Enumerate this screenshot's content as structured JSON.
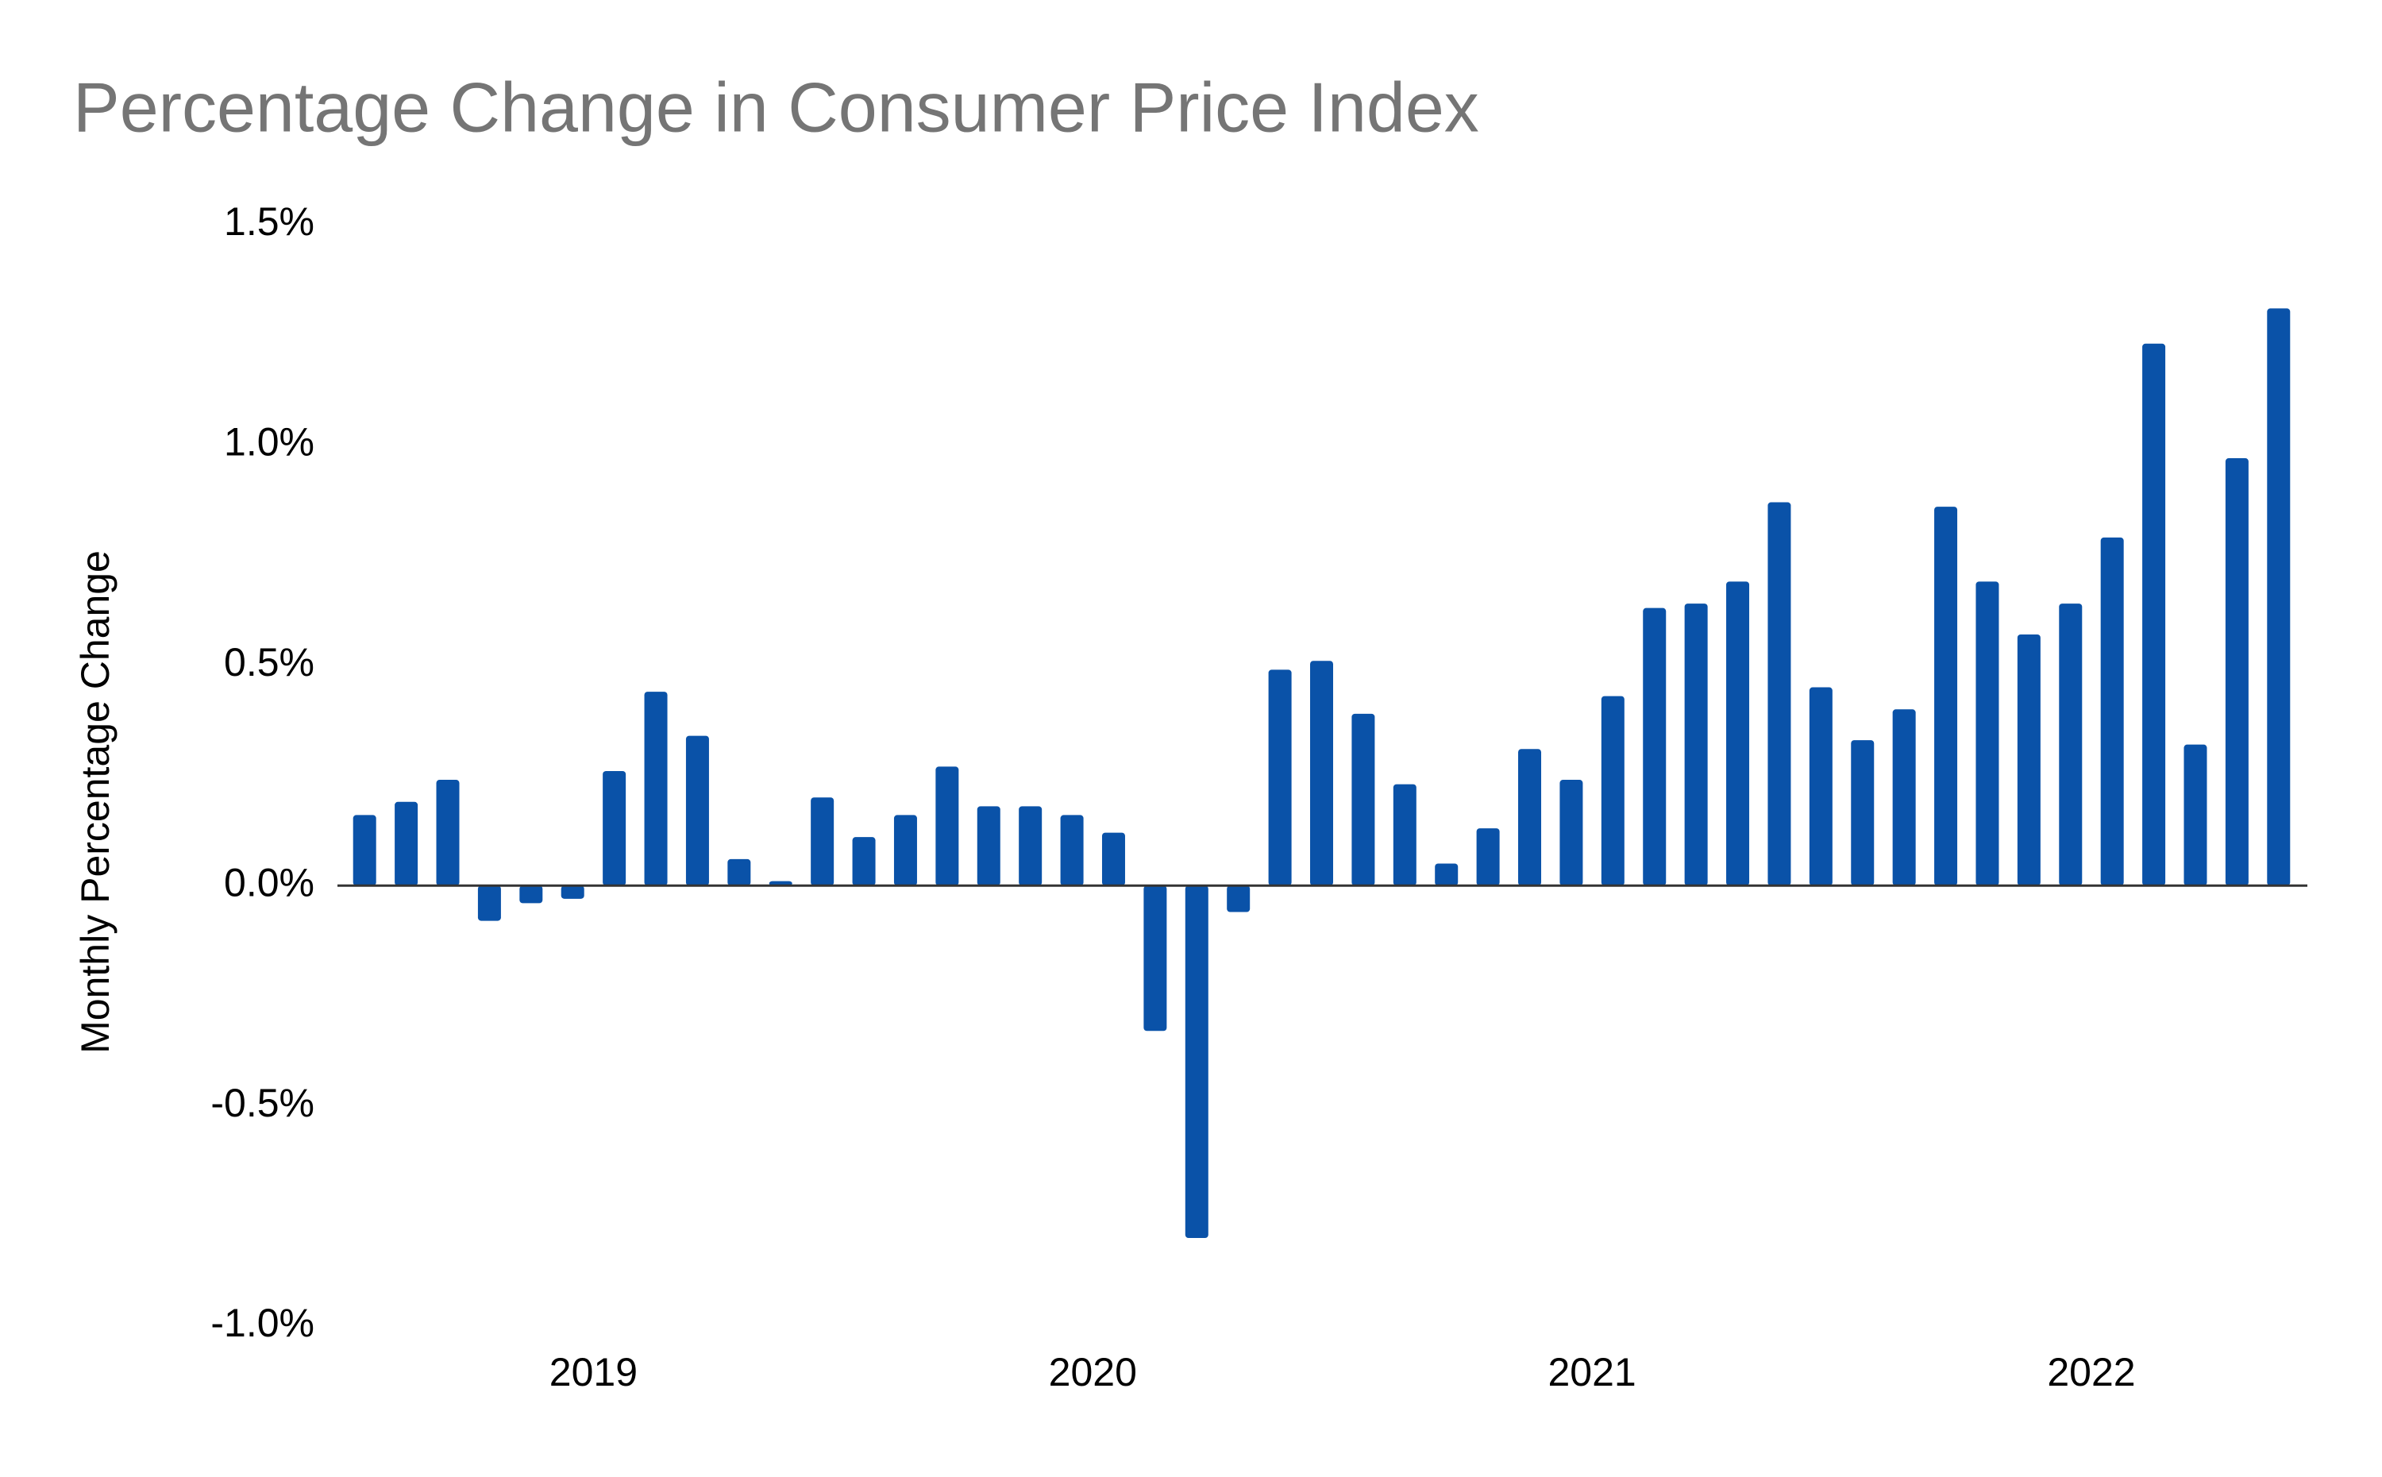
{
  "chart_data": {
    "type": "bar",
    "title": "Percentage Change in Consumer Price Index",
    "y_label": "Monthly Percentage Change",
    "color": "#0a52a8",
    "grid": false,
    "categories": [
      null,
      null,
      null,
      null,
      null,
      "2019",
      null,
      null,
      null,
      null,
      null,
      null,
      null,
      null,
      null,
      null,
      null,
      "2020",
      null,
      null,
      null,
      null,
      null,
      null,
      null,
      null,
      null,
      null,
      null,
      "2021",
      null,
      null,
      null,
      null,
      null,
      null,
      null,
      null,
      null,
      null,
      null,
      "2022",
      null,
      null,
      null,
      null,
      null
    ],
    "values": [
      0.16,
      0.19,
      0.24,
      -0.08,
      -0.04,
      -0.03,
      0.26,
      0.44,
      0.34,
      0.06,
      0.01,
      0.2,
      0.11,
      0.16,
      0.27,
      0.18,
      0.18,
      0.16,
      0.12,
      -0.33,
      -0.8,
      -0.06,
      0.49,
      0.51,
      0.39,
      0.23,
      0.05,
      0.13,
      0.31,
      0.24,
      0.43,
      0.63,
      0.64,
      0.69,
      0.87,
      0.45,
      0.33,
      0.4,
      0.86,
      0.69,
      0.57,
      0.64,
      0.79,
      1.23,
      0.32,
      0.97,
      1.31
    ],
    "ylim": [
      -1.0,
      1.5
    ],
    "yticks": [
      {
        "value": -1.0,
        "label": "-1.0%"
      },
      {
        "value": -0.5,
        "label": "-0.5%"
      },
      {
        "value": 0,
        "label": "0.0%"
      },
      {
        "value": 0.5,
        "label": "0.5%"
      },
      {
        "value": 1.0,
        "label": "1.0%"
      },
      {
        "value": 1.5,
        "label": "1.5%"
      }
    ]
  }
}
